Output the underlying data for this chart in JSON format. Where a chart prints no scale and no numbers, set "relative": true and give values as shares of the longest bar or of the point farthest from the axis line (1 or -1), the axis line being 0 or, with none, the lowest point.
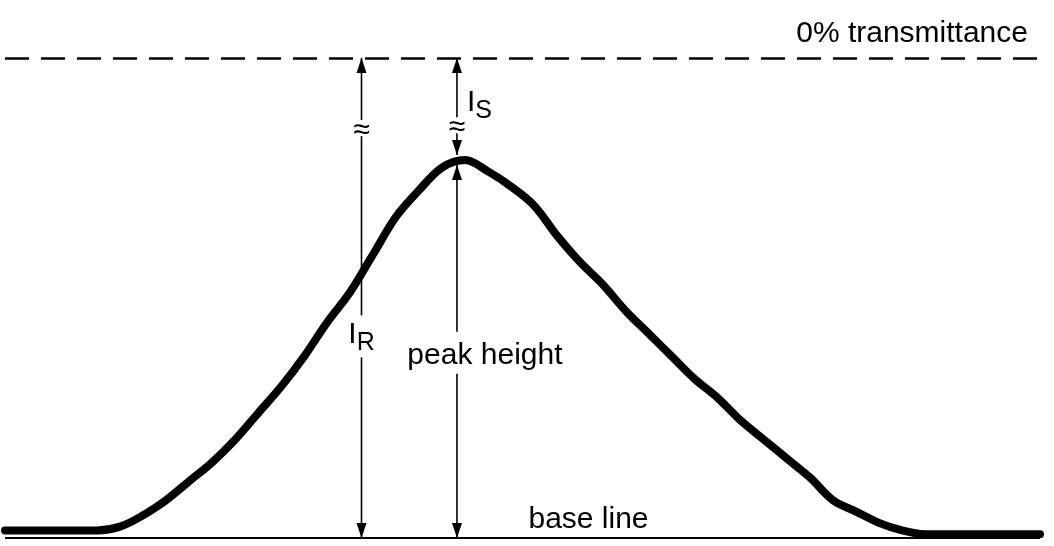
{
  "chart_data": {
    "type": "line",
    "relative": true,
    "categories": [
      null,
      null,
      null,
      null,
      null,
      null,
      null,
      null,
      null,
      null,
      null,
      null,
      null,
      null,
      null,
      null,
      null,
      null,
      null,
      null,
      null,
      null,
      null,
      null,
      null,
      null,
      null,
      null,
      null,
      null,
      null,
      null,
      null,
      null,
      null,
      null,
      null,
      null,
      null,
      null,
      null,
      null,
      null,
      null,
      null,
      null
    ],
    "series": [
      {
        "color": "#000000",
        "values": [
          0.02,
          0.02,
          0.02,
          0.02,
          0.02,
          0.03,
          0.06,
          0.1,
          0.15,
          0.2,
          0.26,
          0.33,
          0.4,
          0.48,
          0.57,
          0.65,
          0.75,
          0.85,
          0.92,
          0.98,
          1.0,
          0.97,
          0.93,
          0.88,
          0.8,
          0.73,
          0.67,
          0.6,
          0.54,
          0.48,
          0.42,
          0.37,
          0.31,
          0.26,
          0.21,
          0.16,
          0.1,
          0.07,
          0.04,
          0.02,
          0.01,
          0.01,
          0.01,
          0.01,
          0.01,
          0.01
        ]
      }
    ],
    "ref_lines": [
      {
        "axis": "y",
        "value": 1.27,
        "label": "0% transmittance",
        "line_style": "dashed",
        "color": "#000000"
      },
      {
        "axis": "y",
        "value": 0,
        "label": "base line",
        "line_style": "solid",
        "color": "#000000"
      }
    ],
    "annotations": [
      "I$_{S}$",
      "≈",
      "I$_{R}$",
      "≈",
      "peak height"
    ]
  }
}
